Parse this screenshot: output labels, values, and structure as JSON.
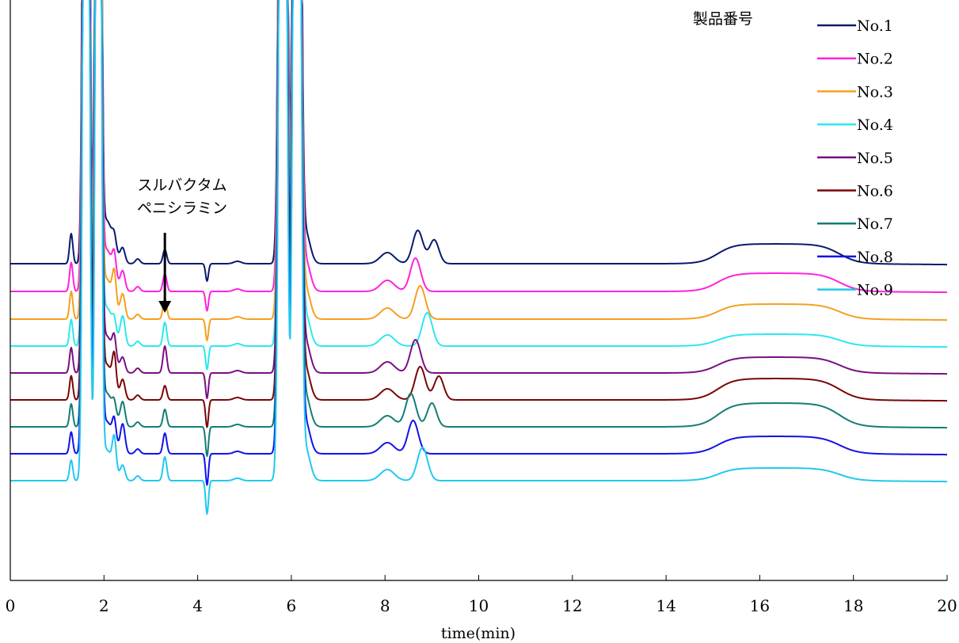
{
  "chart_data": {
    "type": "line",
    "title": "",
    "xlabel": "time(min)",
    "ylabel": "",
    "xlim": [
      0,
      20
    ],
    "x_ticks": [
      "0",
      "2",
      "4",
      "6",
      "8",
      "10",
      "12",
      "14",
      "16",
      "18",
      "20"
    ],
    "grid": false,
    "legend_title": "製品番号",
    "legend_position": "top-right",
    "annotation": {
      "lines": [
        "スルバクタム",
        "ペニシラミン"
      ],
      "x": 3.3
    },
    "series": [
      {
        "name": "No.1",
        "color": "#0a1a6e",
        "baseline": 400,
        "peak_sulbactam": 3.3,
        "peak_a": 8.7,
        "peak_b": 9.05,
        "hump_level": 25
      },
      {
        "name": "No.2",
        "color": "#ff22dd",
        "baseline": 365,
        "peak_sulbactam": 3.3,
        "peak_a": 8.65,
        "peak_b": 8.75,
        "hump_level": 23
      },
      {
        "name": "No.3",
        "color": "#f5a020",
        "baseline": 330,
        "peak_sulbactam": 3.3,
        "peak_a": 8.75,
        "peak_b": 8.8,
        "hump_level": 19
      },
      {
        "name": "No.4",
        "color": "#2be8f0",
        "baseline": 296,
        "peak_sulbactam": 3.3,
        "peak_a": 8.9,
        "peak_b": 8.95,
        "hump_level": 15
      },
      {
        "name": "No.5",
        "color": "#7a0f82",
        "baseline": 262,
        "peak_sulbactam": 3.3,
        "peak_a": 8.65,
        "peak_b": 8.7,
        "hump_level": 20
      },
      {
        "name": "No.6",
        "color": "#7a0505",
        "baseline": 228,
        "peak_sulbactam": 3.3,
        "peak_a": 8.75,
        "peak_b": 9.15,
        "hump_level": 27
      },
      {
        "name": "No.7",
        "color": "#137d75",
        "baseline": 194,
        "peak_sulbactam": 3.3,
        "peak_a": 8.55,
        "peak_b": 9.0,
        "hump_level": 30
      },
      {
        "name": "No.8",
        "color": "#1212e8",
        "baseline": 160,
        "peak_sulbactam": 3.3,
        "peak_a": 8.6,
        "peak_b": 8.65,
        "hump_level": 22
      },
      {
        "name": "No.9",
        "color": "#22c8ee",
        "baseline": 126,
        "peak_sulbactam": 3.3,
        "peak_a": 8.8,
        "peak_b": 8.85,
        "hump_level": 16
      }
    ]
  }
}
